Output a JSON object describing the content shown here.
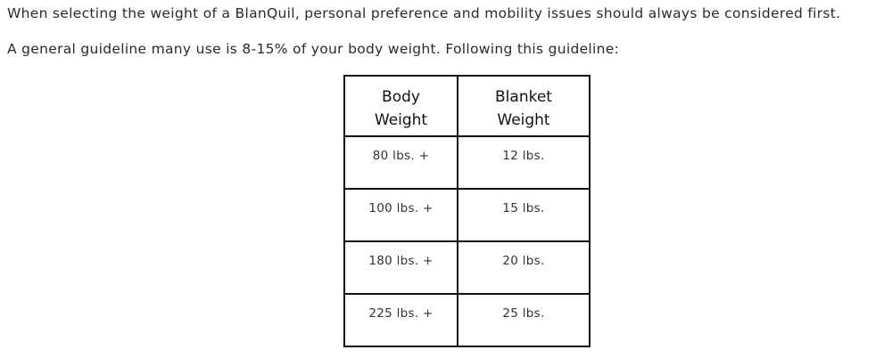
{
  "intro": "When selecting the weight of a BlanQuil, personal preference and mobility issues should always be considered first.",
  "guideline": "A general guideline many use is 8-15% of your body weight. Following this guideline:",
  "table": {
    "headers": [
      [
        "Body",
        "Weight"
      ],
      [
        "Blanket",
        "Weight"
      ]
    ],
    "rows": [
      [
        "80 lbs. +",
        "12 lbs."
      ],
      [
        "100 lbs. +",
        "15 lbs."
      ],
      [
        "180 lbs. +",
        "20 lbs."
      ],
      [
        "225 lbs. +",
        "25 lbs."
      ]
    ]
  }
}
